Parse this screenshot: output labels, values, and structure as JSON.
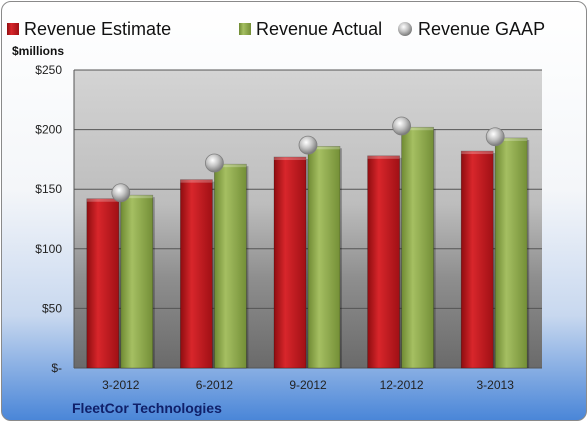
{
  "chart_data": {
    "type": "bar",
    "categories": [
      "3-2012",
      "6-2012",
      "9-2012",
      "12-2012",
      "3-2013"
    ],
    "series": [
      {
        "name": "Revenue Estimate",
        "values": [
          142,
          158,
          177,
          178,
          182
        ],
        "color": "#c0141a"
      },
      {
        "name": "Revenue Actual",
        "values": [
          145,
          171,
          186,
          202,
          193
        ],
        "color": "#8fa94a"
      },
      {
        "name": "Revenue GAAP",
        "values": [
          147,
          172,
          187,
          203,
          194
        ],
        "color": "#b8b8b8"
      }
    ],
    "ylabel": "$millions",
    "ylim": [
      0,
      250
    ],
    "y_ticks": [
      0,
      50,
      100,
      150,
      200,
      250
    ],
    "y_tick_labels": [
      "$-",
      "$50",
      "$100",
      "$150",
      "$200",
      "$250"
    ],
    "grid": true,
    "legend": "top",
    "company": "FleetCor Technologies"
  }
}
